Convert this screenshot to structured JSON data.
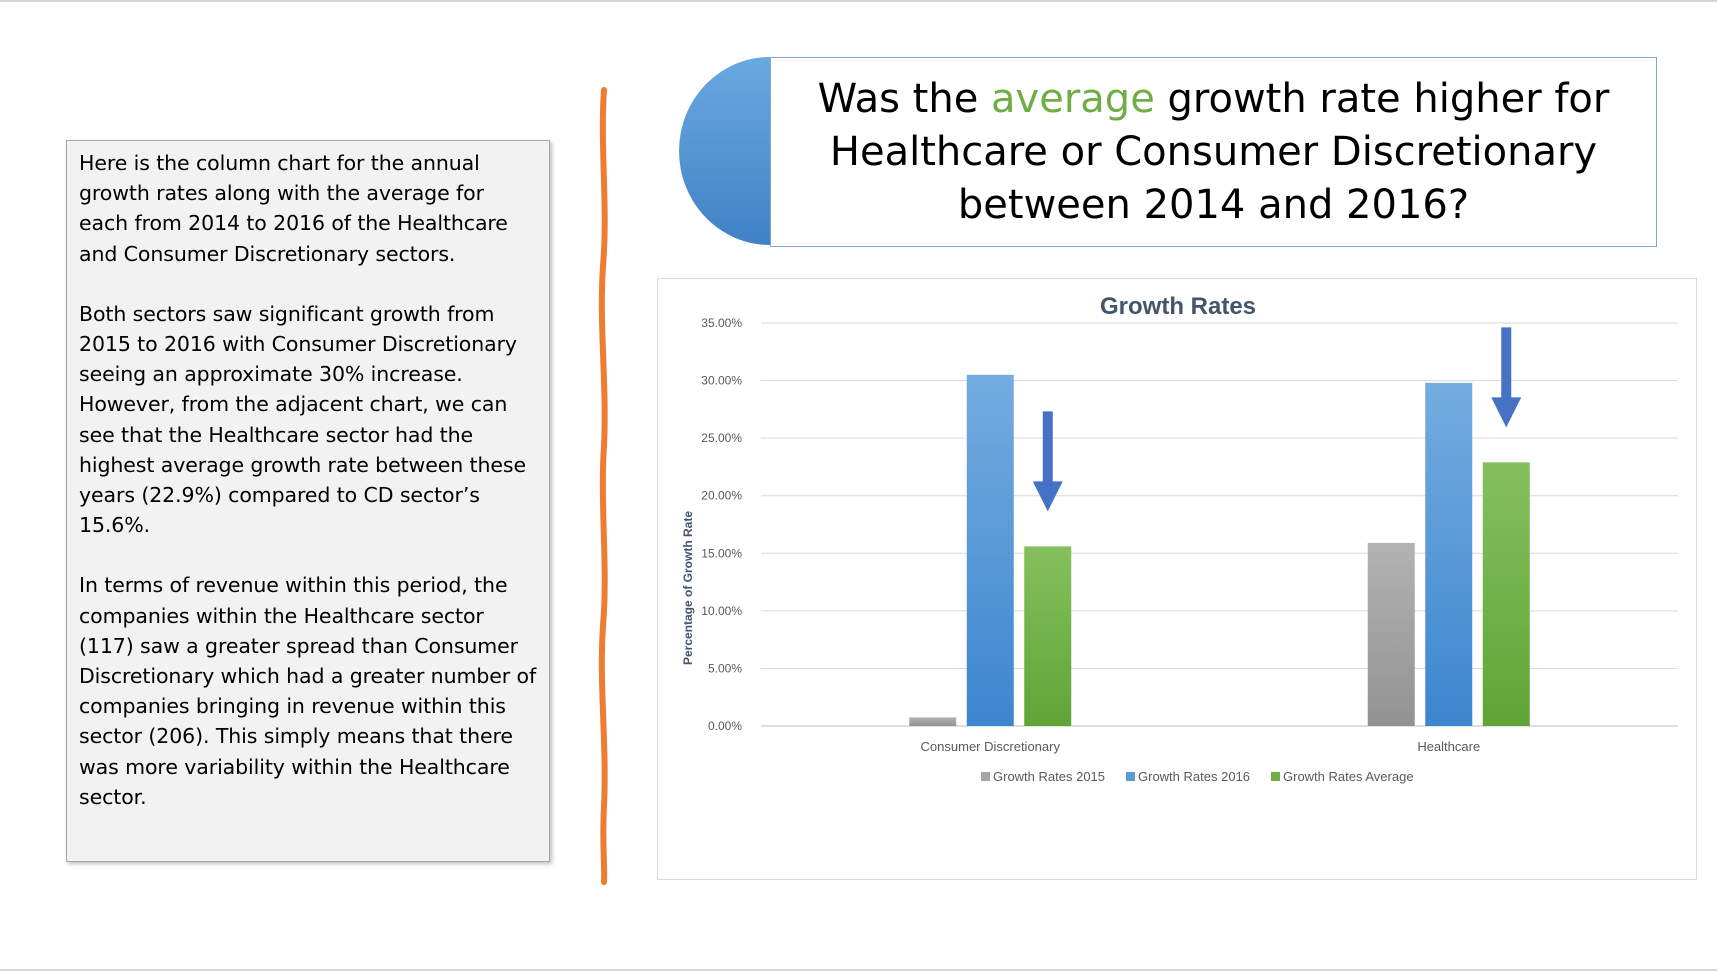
{
  "slide": {
    "title_parts": [
      "Was the ",
      "average",
      " growth rate higher for Healthcare or Consumer Discretionary between 2014 and 2016?"
    ],
    "paragraphs": [
      "Here is the column chart for the annual growth rates along with the average for each from 2014 to 2016 of the Healthcare and Consumer Discretionary sectors.",
      "Both sectors saw significant growth from 2015 to 2016 with Consumer Discretionary seeing an approximate 30% increase. However, from the adjacent chart, we can see that the Healthcare sector had the highest average growth rate between these years (22.9%) compared to CD sector’s 15.6%.",
      "In terms of revenue within this period, the companies within the Healthcare sector (117) saw a greater spread than Consumer Discretionary which had a greater number of companies bringing in revenue within this sector (206). This simply means that there was more variability within the Healthcare sector."
    ]
  },
  "colors": {
    "accent_green": "#70ad47",
    "divider_orange": "#ed7d31",
    "title_circle_blue": "#5b9bd5",
    "arrow_blue": "#4472c4"
  },
  "chart_data": {
    "type": "bar",
    "title": "Growth Rates",
    "xlabel": "",
    "ylabel": "Percentage of Growth Rate",
    "categories": [
      "Consumer Discretionary",
      "Healthcare"
    ],
    "series": [
      {
        "name": "Growth Rates 2015",
        "values": [
          0.0075,
          0.159
        ],
        "color": "#a5a5a5"
      },
      {
        "name": "Growth Rates 2016",
        "values": [
          0.305,
          0.298
        ],
        "color": "#5b9bd5"
      },
      {
        "name": "Growth Rates Average",
        "values": [
          0.156,
          0.229
        ],
        "color": "#70ad47"
      }
    ],
    "ylim": [
      0,
      0.35
    ],
    "yticks": [
      "0.00%",
      "5.00%",
      "10.00%",
      "15.00%",
      "20.00%",
      "25.00%",
      "30.00%",
      "35.00%"
    ],
    "grid": true,
    "legend_position": "bottom",
    "annotations": [
      {
        "type": "arrow-down",
        "category": "Consumer Discretionary",
        "points_to": "Growth Rates Average"
      },
      {
        "type": "arrow-down",
        "category": "Healthcare",
        "points_to": "Growth Rates Average"
      }
    ]
  }
}
